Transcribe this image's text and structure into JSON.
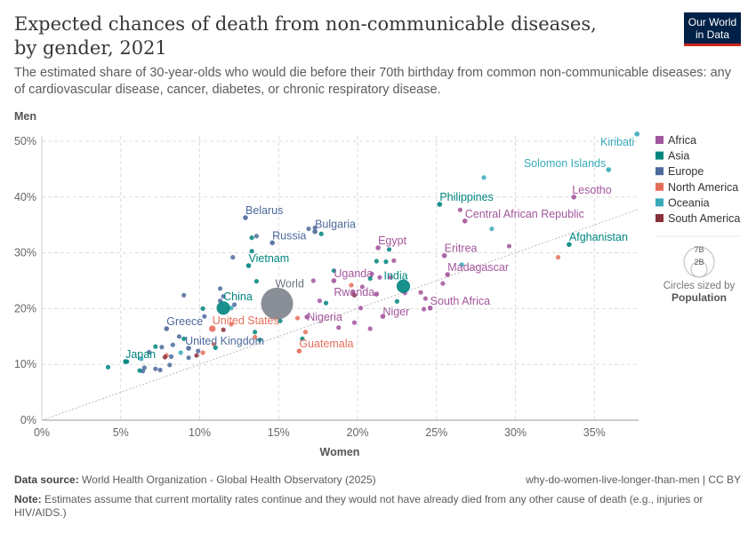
{
  "title": "Expected chances of death from non-communicable diseases, by gender, 2021",
  "subtitle": "The estimated share of 30-year-olds who would die before their 70th birthday from common non-communicable diseases: any of cardiovascular disease, cancer, diabetes, or chronic respiratory disease.",
  "logo": {
    "line1": "Our World",
    "line2": "in Data"
  },
  "footer": {
    "source_label": "Data source:",
    "source": "World Health Organization - Global Health Observatory (2025)",
    "url": "why-do-women-live-longer-than-men | CC BY",
    "note_label": "Note:",
    "note": "Estimates assume that current mortality rates continue and they would not have already died from any other cause of death (e.g., injuries or HIV/AIDS.)"
  },
  "size_legend": {
    "big": "7B",
    "small": "2B",
    "caption": "Circles sized by",
    "variable": "Population"
  },
  "chart_data": {
    "type": "scatter",
    "xlabel": "Women",
    "ylabel": "Men",
    "xlim": [
      0,
      37.8
    ],
    "ylim": [
      0,
      51
    ],
    "xticks": [
      "0%",
      "5%",
      "10%",
      "15%",
      "20%",
      "25%",
      "30%",
      "35%"
    ],
    "yticks": [
      "0%",
      "10%",
      "20%",
      "30%",
      "40%",
      "50%"
    ],
    "grid": true,
    "reference_line": "y = x",
    "legend_position": "right",
    "regions": [
      {
        "name": "Africa",
        "color": "#a2559c"
      },
      {
        "name": "Asia",
        "color": "#00847e"
      },
      {
        "name": "Europe",
        "color": "#4c6a9c"
      },
      {
        "name": "North America",
        "color": "#e56e5a"
      },
      {
        "name": "Oceania",
        "color": "#38aaba"
      },
      {
        "name": "South America",
        "color": "#883039"
      }
    ],
    "world_color": "#6d737d",
    "labeled_points": [
      {
        "label": "Kiribati",
        "region": "Oceania",
        "x": 37.7,
        "y": 51.3
      },
      {
        "label": "Solomon Islands",
        "region": "Oceania",
        "x": 35.9,
        "y": 44.9
      },
      {
        "label": "Lesotho",
        "region": "Africa",
        "x": 33.7,
        "y": 40.0
      },
      {
        "label": "Philippines",
        "region": "Asia",
        "x": 25.2,
        "y": 38.7
      },
      {
        "label": "Central African Republic",
        "region": "Africa",
        "x": 26.8,
        "y": 35.7
      },
      {
        "label": "Afghanistan",
        "region": "Asia",
        "x": 33.4,
        "y": 31.5
      },
      {
        "label": "Eritrea",
        "region": "Africa",
        "x": 25.5,
        "y": 29.5
      },
      {
        "label": "Madagascar",
        "region": "Africa",
        "x": 25.7,
        "y": 26.1
      },
      {
        "label": "India",
        "region": "Asia",
        "x": 22.9,
        "y": 24.0,
        "pop": 1.41
      },
      {
        "label": "South Africa",
        "region": "Africa",
        "x": 24.6,
        "y": 20.1
      },
      {
        "label": "Niger",
        "region": "Africa",
        "x": 21.6,
        "y": 18.6
      },
      {
        "label": "Egypt",
        "region": "Africa",
        "x": 21.3,
        "y": 30.9
      },
      {
        "label": "Uganda",
        "region": "Africa",
        "x": 18.5,
        "y": 25.0
      },
      {
        "label": "Rwanda",
        "region": "Africa",
        "x": 21.2,
        "y": 22.6
      },
      {
        "label": "Nigeria",
        "region": "Africa",
        "x": 16.8,
        "y": 18.5
      },
      {
        "label": "Guatemala",
        "region": "North America",
        "x": 16.3,
        "y": 12.4
      },
      {
        "label": "World",
        "region": "World",
        "x": 14.9,
        "y": 20.9,
        "pop": 7.9
      },
      {
        "label": "China",
        "region": "Asia",
        "x": 11.5,
        "y": 20.1,
        "pop": 1.41
      },
      {
        "label": "United States",
        "region": "North America",
        "x": 10.8,
        "y": 16.4,
        "pop": 0.33
      },
      {
        "label": "Greece",
        "region": "Europe",
        "x": 7.9,
        "y": 16.4
      },
      {
        "label": "United Kingdom",
        "region": "Europe",
        "x": 9.3,
        "y": 12.9
      },
      {
        "label": "Japan",
        "region": "Asia",
        "x": 5.3,
        "y": 10.5
      },
      {
        "label": "Belarus",
        "region": "Europe",
        "x": 12.9,
        "y": 36.3
      },
      {
        "label": "Bulgaria",
        "region": "Europe",
        "x": 17.3,
        "y": 33.8
      },
      {
        "label": "Russia",
        "region": "Europe",
        "x": 14.6,
        "y": 31.8,
        "pop": 0.14
      },
      {
        "label": "Vietnam",
        "region": "Asia",
        "x": 13.1,
        "y": 27.7
      }
    ],
    "other_points": [
      [
        "Asia",
        4.2,
        9.5
      ],
      [
        "Asia",
        5.4,
        10.5
      ],
      [
        "Oceania",
        6.3,
        11.0
      ],
      [
        "Europe",
        6.5,
        9.4
      ],
      [
        "Europe",
        6.4,
        8.8
      ],
      [
        "Asia",
        6.2,
        8.9
      ],
      [
        "Europe",
        7.2,
        9.2
      ],
      [
        "Europe",
        7.5,
        9.0
      ],
      [
        "Europe",
        6.8,
        12.2
      ],
      [
        "Asia",
        7.2,
        13.2
      ],
      [
        "Europe",
        7.6,
        13.1
      ],
      [
        "North America",
        7.9,
        11.6
      ],
      [
        "Europe",
        8.2,
        11.4
      ],
      [
        "South America",
        7.8,
        11.3
      ],
      [
        "Europe",
        8.1,
        9.9
      ],
      [
        "Oceania",
        8.8,
        12.1
      ],
      [
        "Europe",
        9.3,
        11.2
      ],
      [
        "South America",
        9.8,
        11.6
      ],
      [
        "Europe",
        9.9,
        12.4
      ],
      [
        "North America",
        10.2,
        12.1
      ],
      [
        "Asia",
        9.0,
        14.6
      ],
      [
        "Europe",
        8.7,
        15.0
      ],
      [
        "Europe",
        8.3,
        13.5
      ],
      [
        "Europe",
        10.3,
        18.6
      ],
      [
        "Asia",
        10.2,
        20.0
      ],
      [
        "Europe",
        11.3,
        21.4
      ],
      [
        "Europe",
        11.5,
        22.2
      ],
      [
        "Europe",
        11.3,
        23.6
      ],
      [
        "Oceania",
        12.0,
        20.1
      ],
      [
        "Europe",
        12.2,
        20.7
      ],
      [
        "Europe",
        9.0,
        22.4
      ],
      [
        "Asia",
        13.3,
        32.7
      ],
      [
        "Europe",
        13.6,
        33.0
      ],
      [
        "Europe",
        12.1,
        29.2
      ],
      [
        "Asia",
        13.6,
        24.9
      ],
      [
        "Asia",
        13.3,
        30.3
      ],
      [
        "Europe",
        16.9,
        34.3
      ],
      [
        "Europe",
        17.3,
        34.5
      ],
      [
        "Asia",
        17.7,
        33.4
      ],
      [
        "North America",
        10.9,
        13.6
      ],
      [
        "Asia",
        11.0,
        13.0
      ],
      [
        "South America",
        11.5,
        16.2
      ],
      [
        "North America",
        12.0,
        17.2
      ],
      [
        "Asia",
        13.5,
        15.8
      ],
      [
        "Asia",
        13.8,
        14.4
      ],
      [
        "North America",
        13.5,
        14.9
      ],
      [
        "Asia",
        15.1,
        17.8
      ],
      [
        "North America",
        16.2,
        18.3
      ],
      [
        "Asia",
        16.5,
        14.6
      ],
      [
        "North America",
        16.7,
        15.8
      ],
      [
        "Africa",
        17.2,
        25.0
      ],
      [
        "Africa",
        18.8,
        16.6
      ],
      [
        "Africa",
        17.6,
        21.4
      ],
      [
        "Asia",
        18.5,
        26.8
      ],
      [
        "North America",
        19.6,
        24.2
      ],
      [
        "Africa",
        19.7,
        22.9
      ],
      [
        "South America",
        19.8,
        22.4
      ],
      [
        "Africa",
        20.3,
        23.9
      ],
      [
        "Asia",
        20.8,
        25.4
      ],
      [
        "Africa",
        20.9,
        26.2
      ],
      [
        "Asia",
        21.2,
        28.5
      ],
      [
        "Asia",
        21.8,
        28.4
      ],
      [
        "Africa",
        22.3,
        28.6
      ],
      [
        "Asia",
        22.0,
        30.6
      ],
      [
        "Africa",
        21.4,
        25.6
      ],
      [
        "Africa",
        22.1,
        25.6
      ],
      [
        "Africa",
        20.2,
        20.1
      ],
      [
        "Africa",
        19.8,
        17.5
      ],
      [
        "Africa",
        20.8,
        16.4
      ],
      [
        "Africa",
        23.0,
        22.8
      ],
      [
        "Africa",
        24.0,
        22.9
      ],
      [
        "Africa",
        24.3,
        21.8
      ],
      [
        "Africa",
        24.2,
        19.9
      ],
      [
        "Oceania",
        26.6,
        27.9
      ],
      [
        "Africa",
        29.6,
        31.2
      ],
      [
        "North America",
        32.7,
        29.2
      ],
      [
        "Africa",
        25.4,
        24.5
      ],
      [
        "Oceania",
        28.0,
        43.5
      ],
      [
        "Oceania",
        28.5,
        34.3
      ],
      [
        "Africa",
        26.5,
        37.7
      ],
      [
        "Asia",
        22.5,
        21.3
      ],
      [
        "Asia",
        18.0,
        21.0
      ]
    ]
  }
}
